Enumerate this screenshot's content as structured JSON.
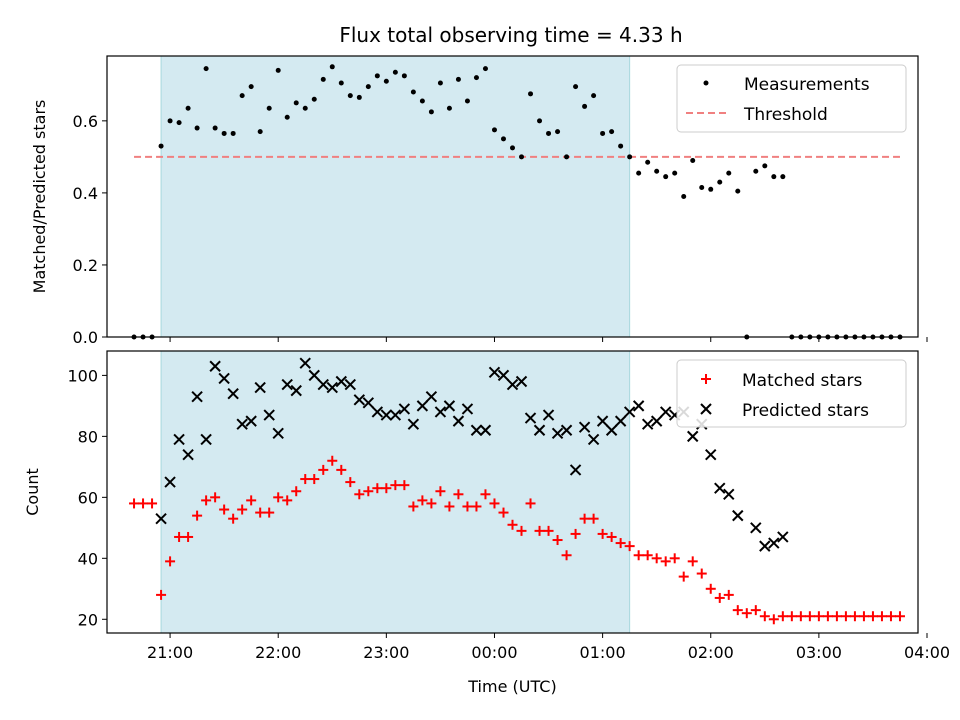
{
  "figure": {
    "title": "Flux total observing time = 4.33 h"
  },
  "colors": {
    "shade": "#d4eaf1",
    "shade_edge": "#a8d8de",
    "measurement": "#000000",
    "threshold": "#f08080",
    "matched": "#ff0000",
    "predicted": "#000000"
  },
  "chart_data": [
    {
      "type": "scatter",
      "ylabel": "Matched/Predicted stars",
      "xlim": [
        "20:25",
        "03:55"
      ],
      "ylim": [
        0,
        0.78
      ],
      "yticks": [
        0,
        0.2,
        0.4,
        0.6
      ],
      "ytick_labels": [
        "0.0",
        "0.2",
        "0.4",
        "0.6"
      ],
      "xticks": [
        "21:00",
        "22:00",
        "23:00",
        "00:00",
        "01:00",
        "02:00",
        "03:00",
        "04:00"
      ],
      "shaded_region": [
        "20:55",
        "01:15"
      ],
      "legend": {
        "placement": "top-right",
        "entries": [
          "Measurements",
          "Threshold"
        ]
      },
      "threshold": {
        "name": "Threshold",
        "y": 0.5,
        "x_range": [
          "20:40",
          "03:45"
        ]
      },
      "series": [
        {
          "name": "Measurements",
          "points": [
            [
              "20:40",
              0
            ],
            [
              "20:45",
              0
            ],
            [
              "20:50",
              0
            ],
            [
              "20:55",
              0.53
            ],
            [
              "21:00",
              0.6
            ],
            [
              "21:05",
              0.595
            ],
            [
              "21:10",
              0.635
            ],
            [
              "21:15",
              0.58
            ],
            [
              "21:20",
              0.745
            ],
            [
              "21:25",
              0.58
            ],
            [
              "21:30",
              0.565
            ],
            [
              "21:35",
              0.565
            ],
            [
              "21:40",
              0.67
            ],
            [
              "21:45",
              0.695
            ],
            [
              "21:50",
              0.57
            ],
            [
              "21:55",
              0.635
            ],
            [
              "22:00",
              0.74
            ],
            [
              "22:05",
              0.61
            ],
            [
              "22:10",
              0.65
            ],
            [
              "22:15",
              0.635
            ],
            [
              "22:20",
              0.66
            ],
            [
              "22:25",
              0.715
            ],
            [
              "22:30",
              0.75
            ],
            [
              "22:35",
              0.705
            ],
            [
              "22:40",
              0.67
            ],
            [
              "22:45",
              0.665
            ],
            [
              "22:50",
              0.695
            ],
            [
              "22:55",
              0.725
            ],
            [
              "23:00",
              0.71
            ],
            [
              "23:05",
              0.735
            ],
            [
              "23:10",
              0.725
            ],
            [
              "23:15",
              0.68
            ],
            [
              "23:20",
              0.655
            ],
            [
              "23:25",
              0.625
            ],
            [
              "23:30",
              0.705
            ],
            [
              "23:35",
              0.635
            ],
            [
              "23:40",
              0.715
            ],
            [
              "23:45",
              0.655
            ],
            [
              "23:50",
              0.72
            ],
            [
              "23:55",
              0.745
            ],
            [
              "00:00",
              0.575
            ],
            [
              "00:05",
              0.55
            ],
            [
              "00:10",
              0.525
            ],
            [
              "00:15",
              0.5
            ],
            [
              "00:20",
              0.675
            ],
            [
              "00:25",
              0.6
            ],
            [
              "00:30",
              0.565
            ],
            [
              "00:35",
              0.57
            ],
            [
              "00:40",
              0.5
            ],
            [
              "00:45",
              0.695
            ],
            [
              "00:50",
              0.64
            ],
            [
              "00:55",
              0.67
            ],
            [
              "01:00",
              0.565
            ],
            [
              "01:05",
              0.57
            ],
            [
              "01:10",
              0.53
            ],
            [
              "01:15",
              0.5
            ],
            [
              "01:20",
              0.455
            ],
            [
              "01:25",
              0.485
            ],
            [
              "01:30",
              0.46
            ],
            [
              "01:35",
              0.445
            ],
            [
              "01:40",
              0.455
            ],
            [
              "01:45",
              0.39
            ],
            [
              "01:50",
              0.49
            ],
            [
              "01:55",
              0.415
            ],
            [
              "02:00",
              0.41
            ],
            [
              "02:05",
              0.43
            ],
            [
              "02:10",
              0.455
            ],
            [
              "02:15",
              0.405
            ],
            [
              "02:20",
              0
            ],
            [
              "02:25",
              0.46
            ],
            [
              "02:30",
              0.475
            ],
            [
              "02:35",
              0.445
            ],
            [
              "02:40",
              0.445
            ],
            [
              "02:45",
              0
            ],
            [
              "02:50",
              0
            ],
            [
              "02:55",
              0
            ],
            [
              "03:00",
              0
            ],
            [
              "03:05",
              0
            ],
            [
              "03:10",
              0
            ],
            [
              "03:15",
              0
            ],
            [
              "03:20",
              0
            ],
            [
              "03:25",
              0
            ],
            [
              "03:30",
              0
            ],
            [
              "03:35",
              0
            ],
            [
              "03:40",
              0
            ],
            [
              "03:45",
              0
            ]
          ]
        }
      ]
    },
    {
      "type": "scatter",
      "xlabel": "Time (UTC)",
      "ylabel": "Count",
      "xlim": [
        "20:25",
        "03:55"
      ],
      "ylim": [
        15.5,
        108
      ],
      "yticks": [
        20,
        40,
        60,
        80,
        100
      ],
      "ytick_labels": [
        "20",
        "40",
        "60",
        "80",
        "100"
      ],
      "xticks": [
        "21:00",
        "22:00",
        "23:00",
        "00:00",
        "01:00",
        "02:00",
        "03:00",
        "04:00"
      ],
      "xtick_labels": [
        "21:00",
        "22:00",
        "23:00",
        "00:00",
        "01:00",
        "02:00",
        "03:00",
        "04:00"
      ],
      "shaded_region": [
        "20:55",
        "01:15"
      ],
      "legend": {
        "placement": "top-right",
        "entries": [
          "Matched stars",
          "Predicted stars"
        ]
      },
      "series": [
        {
          "name": "Matched stars",
          "points": [
            [
              "20:40",
              58
            ],
            [
              "20:45",
              58
            ],
            [
              "20:50",
              58
            ],
            [
              "20:55",
              28
            ],
            [
              "21:00",
              39
            ],
            [
              "21:05",
              47
            ],
            [
              "21:10",
              47
            ],
            [
              "21:15",
              54
            ],
            [
              "21:20",
              59
            ],
            [
              "21:25",
              60
            ],
            [
              "21:30",
              56
            ],
            [
              "21:35",
              53
            ],
            [
              "21:40",
              56
            ],
            [
              "21:45",
              59
            ],
            [
              "21:50",
              55
            ],
            [
              "21:55",
              55
            ],
            [
              "22:00",
              60
            ],
            [
              "22:05",
              59
            ],
            [
              "22:10",
              62
            ],
            [
              "22:15",
              66
            ],
            [
              "22:20",
              66
            ],
            [
              "22:25",
              69
            ],
            [
              "22:30",
              72
            ],
            [
              "22:35",
              69
            ],
            [
              "22:40",
              65
            ],
            [
              "22:45",
              61
            ],
            [
              "22:50",
              62
            ],
            [
              "22:55",
              63
            ],
            [
              "23:00",
              63
            ],
            [
              "23:05",
              64
            ],
            [
              "23:10",
              64
            ],
            [
              "23:15",
              57
            ],
            [
              "23:20",
              59
            ],
            [
              "23:25",
              58
            ],
            [
              "23:30",
              62
            ],
            [
              "23:35",
              57
            ],
            [
              "23:40",
              61
            ],
            [
              "23:45",
              57
            ],
            [
              "23:50",
              57
            ],
            [
              "23:55",
              61
            ],
            [
              "00:00",
              58
            ],
            [
              "00:05",
              55
            ],
            [
              "00:10",
              51
            ],
            [
              "00:15",
              49
            ],
            [
              "00:20",
              58
            ],
            [
              "00:25",
              49
            ],
            [
              "00:30",
              49
            ],
            [
              "00:35",
              46
            ],
            [
              "00:40",
              41
            ],
            [
              "00:45",
              48
            ],
            [
              "00:50",
              53
            ],
            [
              "00:55",
              53
            ],
            [
              "01:00",
              48
            ],
            [
              "01:05",
              47
            ],
            [
              "01:10",
              45
            ],
            [
              "01:15",
              44
            ],
            [
              "01:20",
              41
            ],
            [
              "01:25",
              41
            ],
            [
              "01:30",
              40
            ],
            [
              "01:35",
              39
            ],
            [
              "01:40",
              40
            ],
            [
              "01:45",
              34
            ],
            [
              "01:50",
              39
            ],
            [
              "01:55",
              35
            ],
            [
              "02:00",
              30
            ],
            [
              "02:05",
              27
            ],
            [
              "02:10",
              28
            ],
            [
              "02:15",
              23
            ],
            [
              "02:20",
              22
            ],
            [
              "02:25",
              23
            ],
            [
              "02:30",
              21
            ],
            [
              "02:35",
              20
            ],
            [
              "02:40",
              21
            ],
            [
              "02:45",
              21
            ],
            [
              "02:50",
              21
            ],
            [
              "02:55",
              21
            ],
            [
              "03:00",
              21
            ],
            [
              "03:05",
              21
            ],
            [
              "03:10",
              21
            ],
            [
              "03:15",
              21
            ],
            [
              "03:20",
              21
            ],
            [
              "03:25",
              21
            ],
            [
              "03:30",
              21
            ],
            [
              "03:35",
              21
            ],
            [
              "03:40",
              21
            ],
            [
              "03:45",
              21
            ]
          ]
        },
        {
          "name": "Predicted stars",
          "points": [
            [
              "20:55",
              53
            ],
            [
              "21:00",
              65
            ],
            [
              "21:05",
              79
            ],
            [
              "21:10",
              74
            ],
            [
              "21:15",
              93
            ],
            [
              "21:20",
              79
            ],
            [
              "21:25",
              103
            ],
            [
              "21:30",
              99
            ],
            [
              "21:35",
              94
            ],
            [
              "21:40",
              84
            ],
            [
              "21:45",
              85
            ],
            [
              "21:50",
              96
            ],
            [
              "21:55",
              87
            ],
            [
              "22:00",
              81
            ],
            [
              "22:05",
              97
            ],
            [
              "22:10",
              95
            ],
            [
              "22:15",
              104
            ],
            [
              "22:20",
              100
            ],
            [
              "22:25",
              97
            ],
            [
              "22:30",
              96
            ],
            [
              "22:35",
              98
            ],
            [
              "22:40",
              97
            ],
            [
              "22:45",
              92
            ],
            [
              "22:50",
              91
            ],
            [
              "22:55",
              88
            ],
            [
              "23:00",
              87
            ],
            [
              "23:05",
              87
            ],
            [
              "23:10",
              89
            ],
            [
              "23:15",
              84
            ],
            [
              "23:20",
              90
            ],
            [
              "23:25",
              93
            ],
            [
              "23:30",
              88
            ],
            [
              "23:35",
              90
            ],
            [
              "23:40",
              85
            ],
            [
              "23:45",
              89
            ],
            [
              "23:50",
              82
            ],
            [
              "23:55",
              82
            ],
            [
              "00:00",
              101
            ],
            [
              "00:05",
              100
            ],
            [
              "00:10",
              97
            ],
            [
              "00:15",
              98
            ],
            [
              "00:20",
              86
            ],
            [
              "00:25",
              82
            ],
            [
              "00:30",
              87
            ],
            [
              "00:35",
              81
            ],
            [
              "00:40",
              82
            ],
            [
              "00:45",
              69
            ],
            [
              "00:50",
              83
            ],
            [
              "00:55",
              79
            ],
            [
              "01:00",
              85
            ],
            [
              "01:05",
              82
            ],
            [
              "01:10",
              85
            ],
            [
              "01:15",
              88
            ],
            [
              "01:20",
              90
            ],
            [
              "01:25",
              84
            ],
            [
              "01:30",
              85
            ],
            [
              "01:35",
              88
            ],
            [
              "01:40",
              87
            ],
            [
              "01:45",
              88
            ],
            [
              "01:50",
              80
            ],
            [
              "01:55",
              84
            ],
            [
              "02:00",
              74
            ],
            [
              "02:05",
              63
            ],
            [
              "02:10",
              61
            ],
            [
              "02:15",
              54
            ],
            [
              "02:25",
              50
            ],
            [
              "02:30",
              44
            ],
            [
              "02:35",
              45
            ],
            [
              "02:40",
              47
            ]
          ]
        }
      ]
    }
  ]
}
